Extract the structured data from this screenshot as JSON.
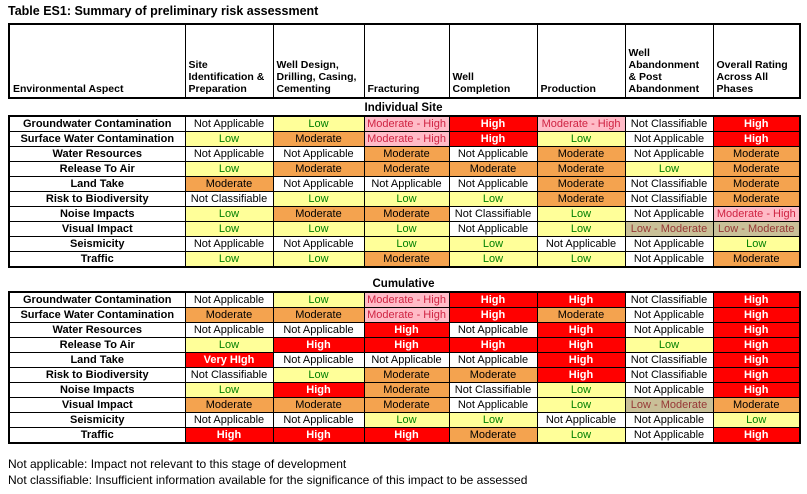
{
  "title": "Table ES1: Summary of preliminary risk assessment",
  "columns": [
    "Environmental Aspect",
    "Site Identification & Preparation",
    "Well Design, Drilling, Casing, Cementing",
    "Fracturing",
    "Well Completion",
    "Production",
    "Well Abandonment & Post Abandonment",
    "Overall Rating Across All Phases"
  ],
  "sections": [
    {
      "label": "Individual Site",
      "rows": [
        {
          "aspect": "Groundwater Contamination",
          "cells": [
            "Not Applicable",
            "Low",
            "Moderate - High",
            "High",
            "Moderate - High",
            "Not Classifiable",
            "High"
          ]
        },
        {
          "aspect": "Surface Water Contamination",
          "cells": [
            "Low",
            "Moderate",
            "Moderate - High",
            "High",
            "Low",
            "Not Applicable",
            "High"
          ]
        },
        {
          "aspect": "Water Resources",
          "cells": [
            "Not Applicable",
            "Not Applicable",
            "Moderate",
            "Not Applicable",
            "Moderate",
            "Not Applicable",
            "Moderate"
          ]
        },
        {
          "aspect": "Release To Air",
          "cells": [
            "Low",
            "Moderate",
            "Moderate",
            "Moderate",
            "Moderate",
            "Low",
            "Moderate"
          ]
        },
        {
          "aspect": "Land Take",
          "cells": [
            "Moderate",
            "Not Applicable",
            "Not Applicable",
            "Not Applicable",
            "Moderate",
            "Not Classifiable",
            "Moderate"
          ]
        },
        {
          "aspect": "Risk to Biodiversity",
          "cells": [
            "Not Classifiable",
            "Low",
            "Low",
            "Low",
            "Moderate",
            "Not Classifiable",
            "Moderate"
          ]
        },
        {
          "aspect": "Noise Impacts",
          "cells": [
            "Low",
            "Moderate",
            "Moderate",
            "Not Classifiable",
            "Low",
            "Not Applicable",
            "Moderate - High"
          ]
        },
        {
          "aspect": "Visual Impact",
          "cells": [
            "Low",
            "Low",
            "Low",
            "Not Applicable",
            "Low",
            "Low - Moderate",
            "Low - Moderate"
          ]
        },
        {
          "aspect": "Seismicity",
          "cells": [
            "Not Applicable",
            "Not Applicable",
            "Low",
            "Low",
            "Not Applicable",
            "Not Applicable",
            "Low"
          ]
        },
        {
          "aspect": "Traffic",
          "cells": [
            "Low",
            "Low",
            "Moderate",
            "Low",
            "Low",
            "Not Applicable",
            "Moderate"
          ]
        }
      ]
    },
    {
      "label": "Cumulative",
      "rows": [
        {
          "aspect": "Groundwater Contamination",
          "cells": [
            "Not Applicable",
            "Low",
            "Moderate - High",
            "High",
            "High",
            "Not Classifiable",
            "High"
          ]
        },
        {
          "aspect": "Surface Water Contamination",
          "cells": [
            "Moderate",
            "Moderate",
            "Moderate - High",
            "High",
            "Moderate",
            "Not Applicable",
            "High"
          ]
        },
        {
          "aspect": "Water Resources",
          "cells": [
            "Not Applicable",
            "Not Applicable",
            "High",
            "Not Applicable",
            "High",
            "Not Applicable",
            "High"
          ]
        },
        {
          "aspect": "Release To Air",
          "cells": [
            "Low",
            "High",
            "High",
            "High",
            "High",
            "Low",
            "High"
          ]
        },
        {
          "aspect": "Land Take",
          "cells": [
            "Very HIgh",
            "Not Applicable",
            "Not Applicable",
            "Not Applicable",
            "High",
            "Not Classifiable",
            "High"
          ]
        },
        {
          "aspect": "Risk to Biodiversity",
          "cells": [
            "Not Classifiable",
            "Low",
            "Moderate",
            "Moderate",
            "High",
            "Not Classifiable",
            "High"
          ]
        },
        {
          "aspect": "Noise Impacts",
          "cells": [
            "Low",
            "High",
            "Moderate",
            "Not Classifiable",
            "Low",
            "Not Applicable",
            "High"
          ]
        },
        {
          "aspect": "Visual Impact",
          "cells": [
            "Moderate",
            "Moderate",
            "Moderate",
            "Not Applicable",
            "Low",
            "Low - Moderate",
            "Moderate"
          ]
        },
        {
          "aspect": "Seismicity",
          "cells": [
            "Not Applicable",
            "Not Applicable",
            "Low",
            "Low",
            "Not Applicable",
            "Not Applicable",
            "Low"
          ]
        },
        {
          "aspect": "Traffic",
          "cells": [
            "High",
            "High",
            "High",
            "Moderate",
            "Low",
            "Not Applicable",
            "High"
          ]
        }
      ]
    }
  ],
  "notes": [
    "Not applicable: Impact not relevant to this stage of development",
    "Not classifiable: Insufficient information available for the significance of this impact to be assessed"
  ],
  "style_map": {
    "Not Applicable": "na",
    "Not Classifiable": "nc",
    "Low": "low",
    "Moderate": "moderate",
    "High": "high",
    "Very HIgh": "very-high",
    "Moderate - High": "mod-high",
    "Low - Moderate": "low-mod"
  },
  "colors": {
    "low_bg": "#FFFF99",
    "low_text": "#008000",
    "moderate_bg": "#F4A34F",
    "moderate_text": "#000000",
    "high_bg": "#FF0000",
    "high_text": "#FFFFFF",
    "very_high_bg": "#FF0000",
    "very_high_text": "#FFFFFF",
    "moderate_high_bg": "#FFBBC7",
    "moderate_high_text": "#CF2342",
    "low_moderate_bg": "#C9C098",
    "low_moderate_text": "#963735",
    "not_applicable_bg": "#FFFFFF",
    "grid_border": "#000000"
  }
}
